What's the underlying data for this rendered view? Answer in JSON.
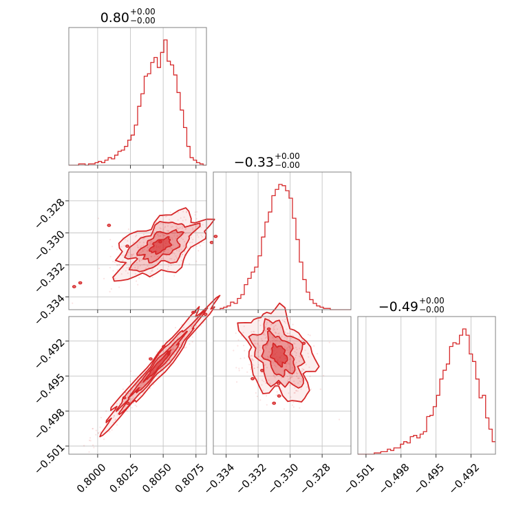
{
  "chart_data": {
    "type": "corner",
    "color": "#d62728",
    "grid": true,
    "parameters": [
      {
        "title": {
          "value": "0.80",
          "plus": "+0.00",
          "minus": "−0.00"
        },
        "range": [
          0.7978,
          0.8083
        ],
        "ticks": [
          0.8,
          0.8025,
          0.805,
          0.8075
        ],
        "tick_labels": [
          "0.8000",
          "0.8025",
          "0.8050",
          "0.8075"
        ],
        "hist_bins": [
          0,
          0,
          0,
          0.01,
          0.01,
          0,
          0.01,
          0.01,
          0.02,
          0.03,
          0.02,
          0.04,
          0.06,
          0.05,
          0.08,
          0.11,
          0.12,
          0.15,
          0.2,
          0.24,
          0.32,
          0.47,
          0.57,
          0.71,
          0.73,
          0.82,
          0.86,
          0.78,
          0.9,
          1.0,
          0.83,
          0.8,
          0.72,
          0.58,
          0.44,
          0.3,
          0.15,
          0.06,
          0.04,
          0.02,
          0.01,
          0
        ]
      },
      {
        "title": {
          "value": "−0.33",
          "plus": "+0.00",
          "minus": "−0.00"
        },
        "range": [
          -0.3348,
          -0.3262
        ],
        "ticks": [
          -0.334,
          -0.332,
          -0.33,
          -0.328
        ],
        "tick_labels": [
          "−0.334",
          "−0.332",
          "−0.330",
          "−0.328"
        ],
        "hist_bins": [
          0,
          0,
          0.01,
          0.02,
          0.03,
          0.06,
          0.05,
          0.09,
          0.12,
          0.2,
          0.25,
          0.3,
          0.34,
          0.43,
          0.58,
          0.7,
          0.78,
          0.91,
          0.96,
          1.0,
          0.99,
          0.95,
          0.89,
          0.73,
          0.56,
          0.38,
          0.24,
          0.14,
          0.08,
          0.05,
          0.03,
          0.02,
          0.01,
          0.01,
          0,
          0,
          0,
          0,
          0,
          0
        ]
      },
      {
        "title": {
          "value": "−0.49",
          "plus": "+0.00",
          "minus": "−0.00"
        },
        "range": [
          -0.5017,
          -0.4899
        ],
        "ticks": [
          -0.501,
          -0.498,
          -0.495,
          -0.492
        ],
        "tick_labels": [
          "−0.501",
          "−0.498",
          "−0.495",
          "−0.492"
        ],
        "hist_bins": [
          0,
          0,
          0,
          0,
          0,
          0.01,
          0.01,
          0.02,
          0.02,
          0.04,
          0.03,
          0.05,
          0.05,
          0.08,
          0.1,
          0.09,
          0.14,
          0.15,
          0.13,
          0.16,
          0.18,
          0.3,
          0.31,
          0.38,
          0.47,
          0.6,
          0.67,
          0.72,
          0.86,
          0.89,
          0.88,
          0.95,
          1.0,
          0.95,
          0.8,
          0.74,
          0.6,
          0.45,
          0.47,
          0.29,
          0.2,
          0.1
        ]
      }
    ],
    "density_centers": [
      {
        "params": [
          0,
          1
        ],
        "x": 0.8048,
        "y": -0.3308
      },
      {
        "params": [
          0,
          2
        ],
        "x": 0.8046,
        "y": -0.4941
      },
      {
        "params": [
          1,
          2
        ],
        "x": -0.3307,
        "y": -0.4932
      }
    ]
  }
}
